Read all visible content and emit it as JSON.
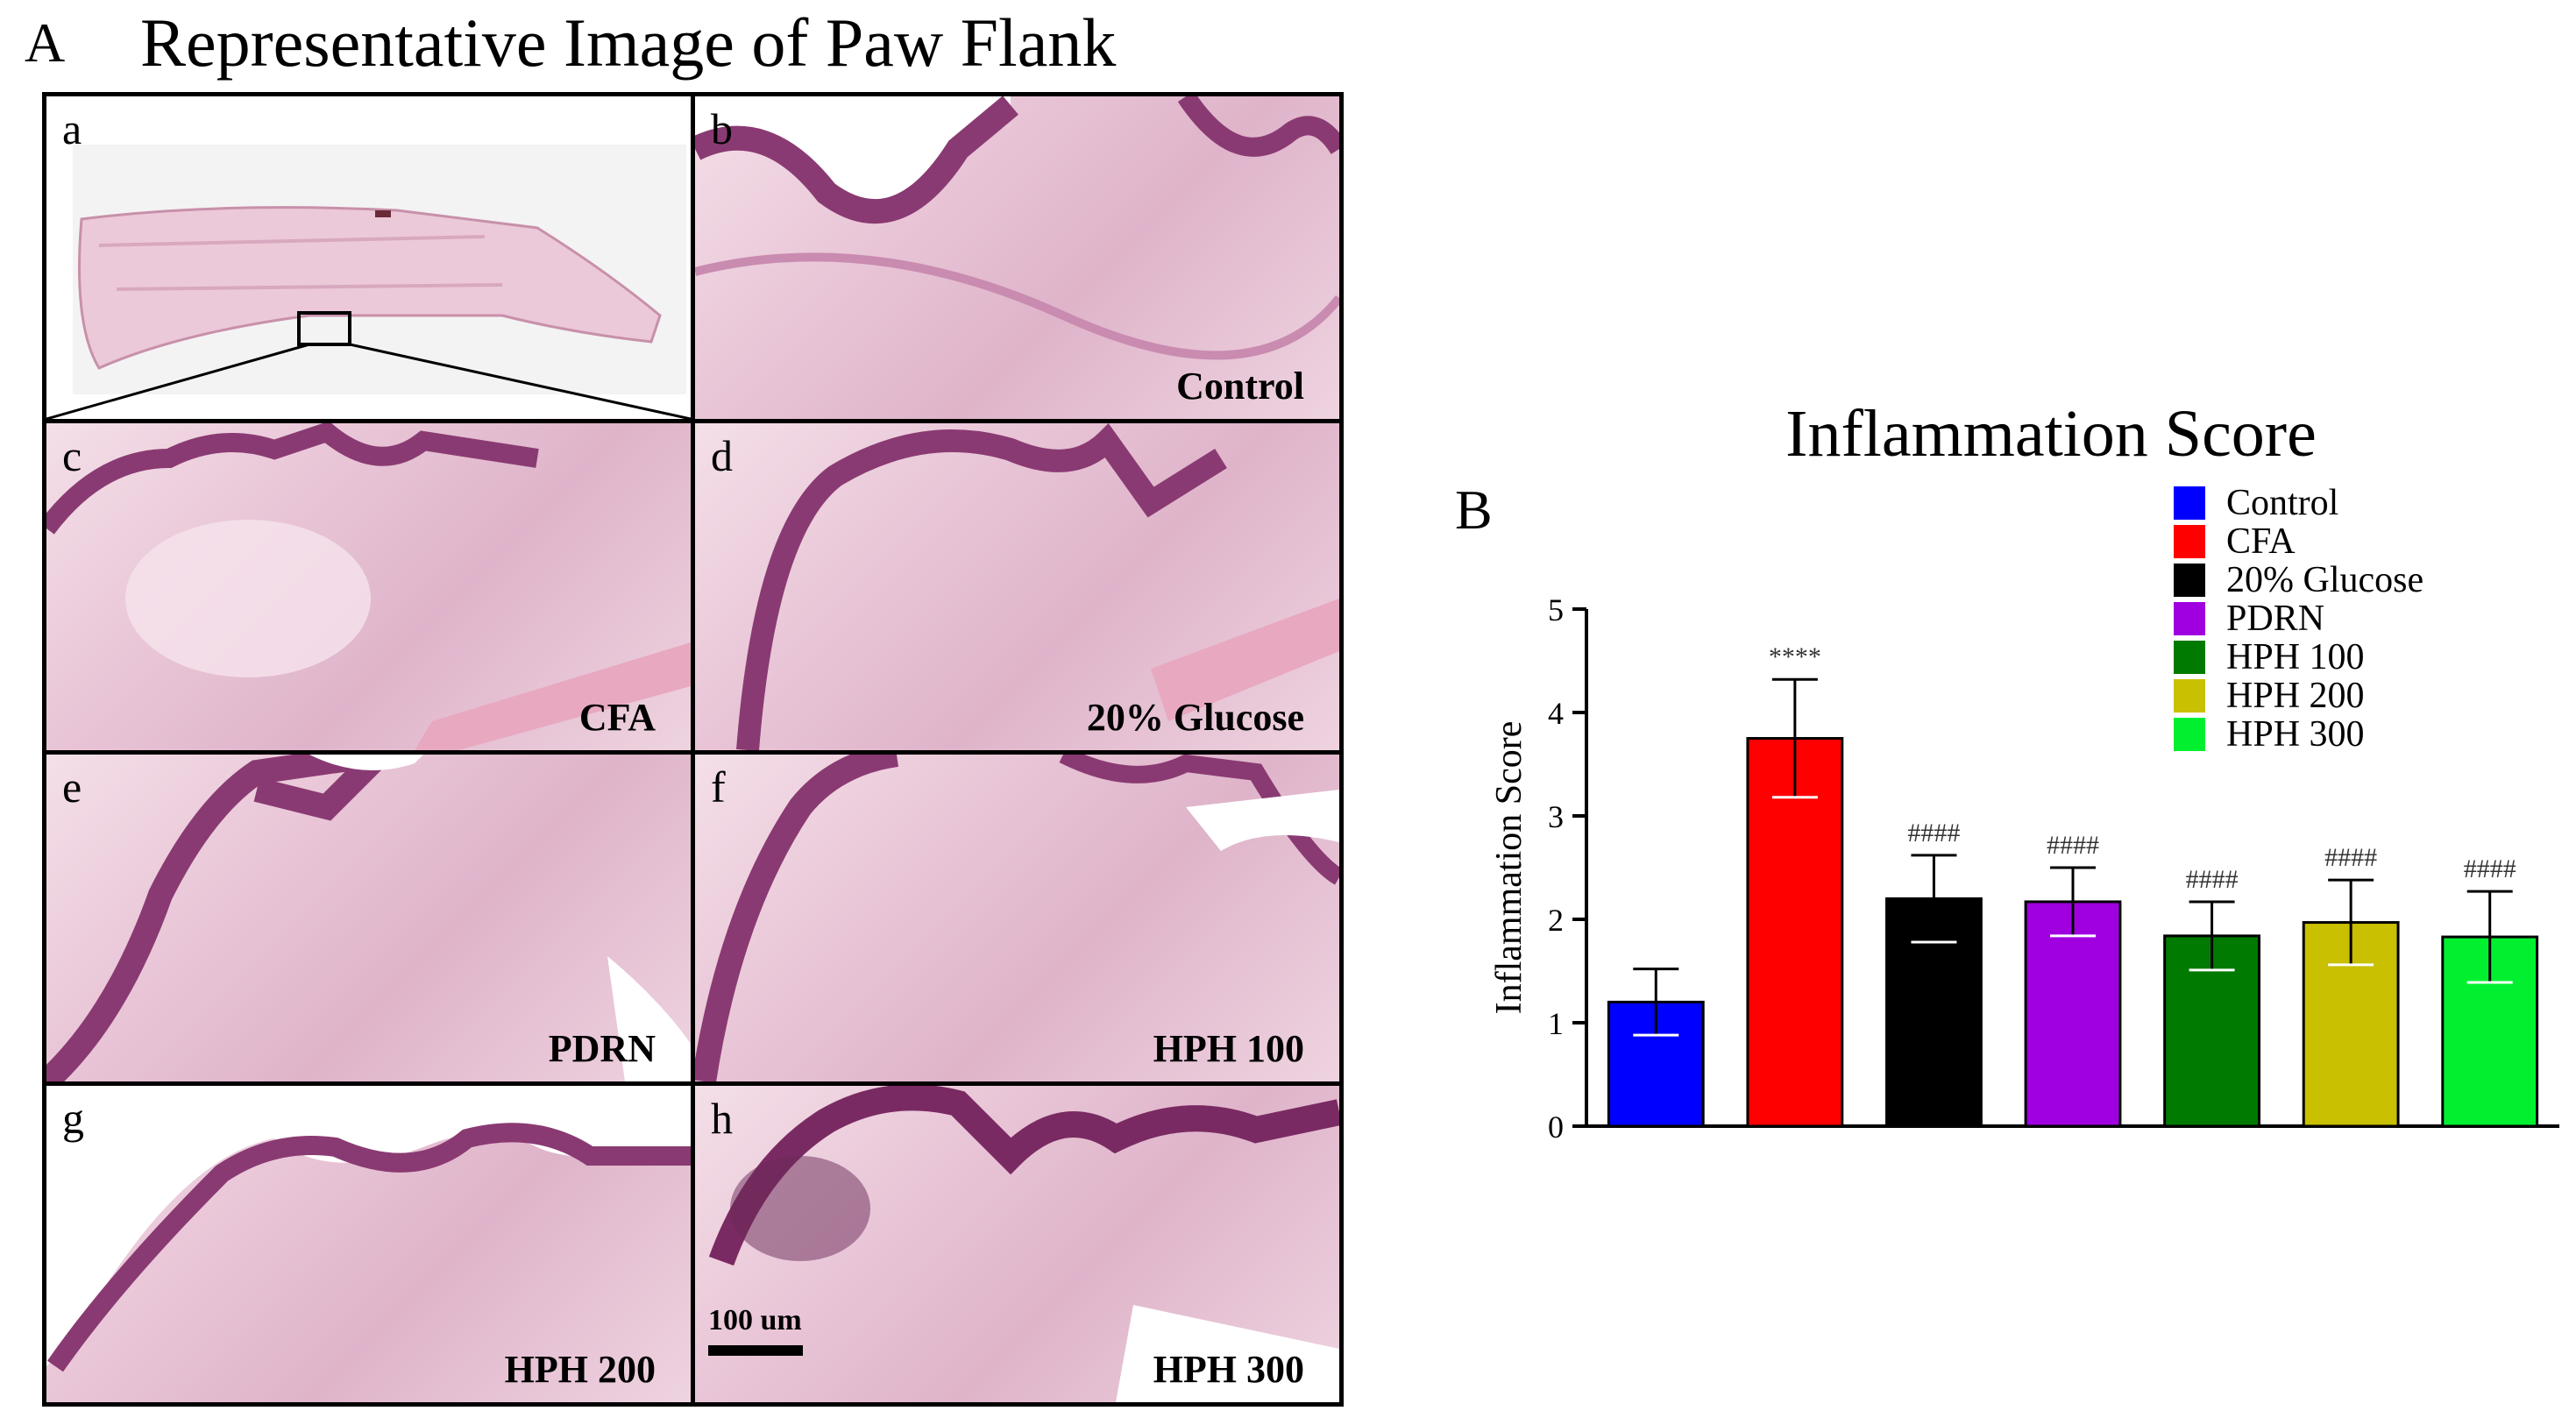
{
  "panel_a": {
    "letter": "A",
    "title": "Representative Image of Paw Flank",
    "tiles": [
      {
        "letter": "a",
        "label": ""
      },
      {
        "letter": "b",
        "label": "Control"
      },
      {
        "letter": "c",
        "label": "CFA"
      },
      {
        "letter": "d",
        "label": "20% Glucose"
      },
      {
        "letter": "e",
        "label": "PDRN"
      },
      {
        "letter": "f",
        "label": "HPH 100"
      },
      {
        "letter": "g",
        "label": "HPH 200"
      },
      {
        "letter": "h",
        "label": "HPH 300"
      }
    ],
    "scale_bar": "100 um"
  },
  "panel_b": {
    "letter": "B"
  },
  "chart_data": {
    "type": "bar",
    "title": "Inflammation Score",
    "xlabel": "",
    "ylabel": "Inflammation Score",
    "ylim": [
      0,
      5
    ],
    "yticks": [
      0,
      1,
      2,
      3,
      4,
      5
    ],
    "categories": [
      "Control",
      "CFA",
      "20% Glucose",
      "PDRN",
      "HPH 100",
      "HPH 200",
      "HPH 300"
    ],
    "values": [
      1.2,
      3.75,
      2.2,
      2.17,
      1.84,
      1.97,
      1.83
    ],
    "errors": [
      0.32,
      0.57,
      0.42,
      0.33,
      0.33,
      0.41,
      0.44
    ],
    "colors": [
      "#0000ff",
      "#ff0000",
      "#000000",
      "#a000e0",
      "#007a00",
      "#c8c000",
      "#00f030"
    ],
    "annotations": [
      "",
      "****",
      "####",
      "####",
      "####",
      "####",
      "####"
    ],
    "legend": {
      "position": "top-right",
      "entries": [
        "Control",
        "CFA",
        "20% Glucose",
        "PDRN",
        "HPH 100",
        "HPH 200",
        "HPH 300"
      ]
    },
    "grid": false
  }
}
